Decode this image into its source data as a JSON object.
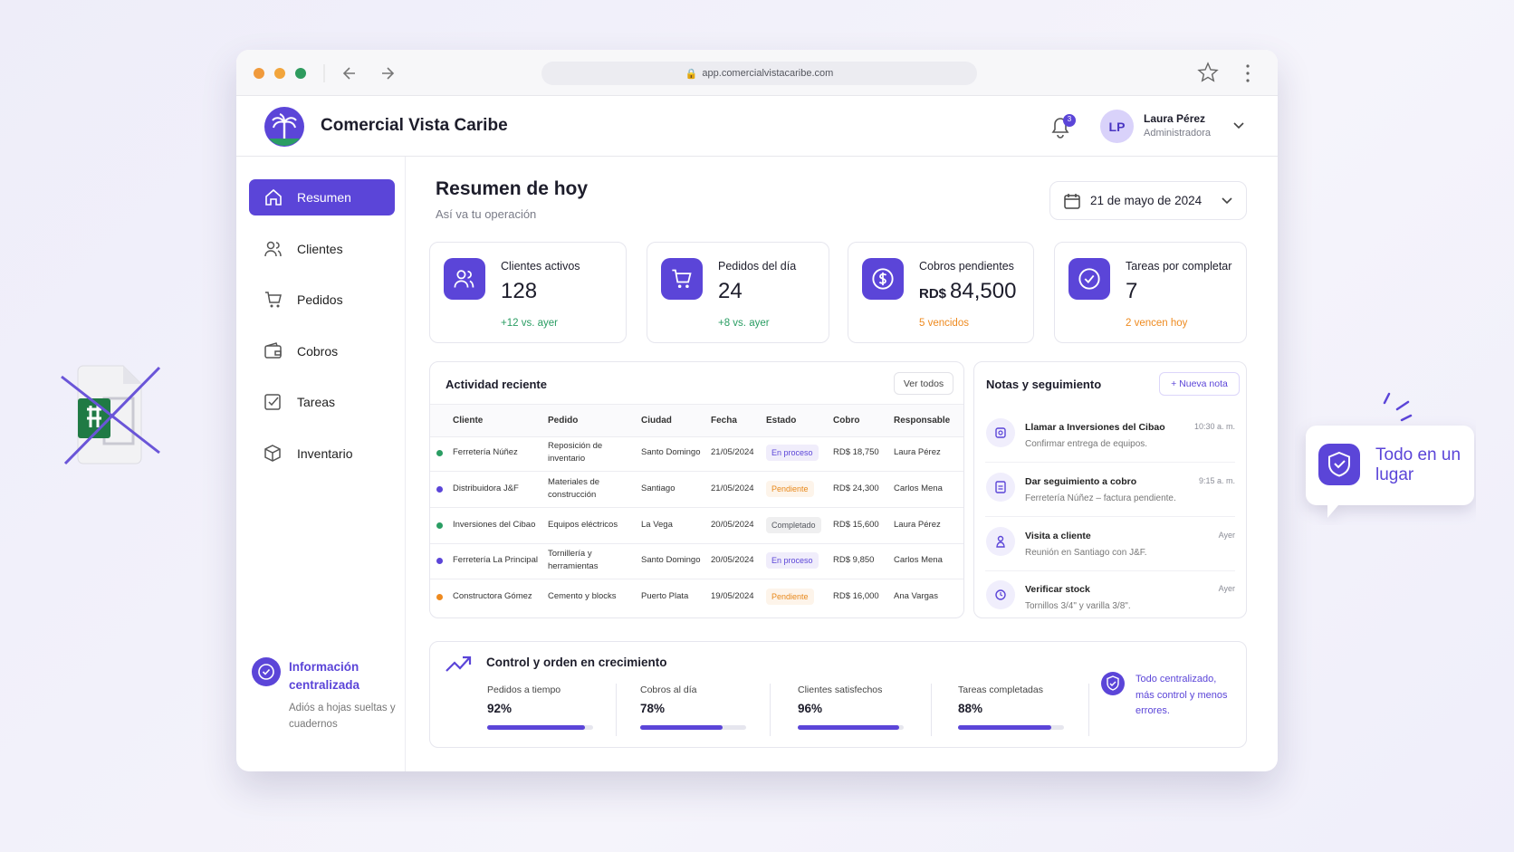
{
  "browser": {
    "url": "app.comercialvistacaribe.com"
  },
  "header": {
    "brand": "Comercial Vista Caribe",
    "notifications": "3",
    "user": {
      "initials": "LP",
      "name": "Laura Pérez",
      "role": "Administradora"
    }
  },
  "sidebar": {
    "nav": [
      "Resumen",
      "Clientes",
      "Pedidos",
      "Cobros",
      "Tareas",
      "Inventario"
    ],
    "info": {
      "title": "Información centralizada",
      "text": "Adiós a hojas sueltas y cuadernos"
    }
  },
  "main": {
    "title": "Resumen de hoy",
    "subtitle": "Así va tu operación",
    "date": "21 de mayo de 2024"
  },
  "stats": [
    {
      "label": "Clientes activos",
      "value": "128",
      "note": "+12 vs. ayer",
      "note_color": "#2a9d63"
    },
    {
      "label": "Pedidos del día",
      "value": "24",
      "note": "+8 vs. ayer",
      "note_color": "#2a9d63"
    },
    {
      "label": "Cobros pendientes",
      "currency": "RD$",
      "value": "84,500",
      "note": "5 vencidos",
      "note_color": "#ee8a1f"
    },
    {
      "label": "Tareas por completar",
      "value": "7",
      "note": "2 vencen hoy",
      "note_color": "#ee8a1f"
    }
  ],
  "activity": {
    "title": "Actividad reciente",
    "button": "Ver todos",
    "columns": [
      "Cliente",
      "Pedido",
      "Ciudad",
      "Fecha",
      "Estado",
      "Cobro",
      "Responsable"
    ],
    "rows": [
      {
        "dot": "#2a9d63",
        "badge": "#5b45d8",
        "cells": [
          "Ferretería Núñez",
          "Reposición de inventario",
          "Santo Domingo",
          "21/05/2024",
          "En proceso",
          "RD$ 18,750",
          "Laura Pérez"
        ]
      },
      {
        "dot": "#5b45d8",
        "badge": "#e8891c",
        "cells": [
          "Distribuidora J&F",
          "Materiales de construcción",
          "Santiago",
          "21/05/2024",
          "Pendiente",
          "RD$ 24,300",
          "Carlos Mena"
        ]
      },
      {
        "dot": "#2a9d63",
        "badge": "#55585f",
        "cells": [
          "Inversiones del Cibao",
          "Equipos eléctricos",
          "La Vega",
          "20/05/2024",
          "Completado",
          "RD$ 15,600",
          "Laura Pérez"
        ]
      },
      {
        "dot": "#5b45d8",
        "badge": "#5b45d8",
        "cells": [
          "Ferretería La Principal",
          "Tornillería y herramientas",
          "Santo Domingo",
          "20/05/2024",
          "En proceso",
          "RD$ 9,850",
          "Carlos Mena"
        ]
      },
      {
        "dot": "#ee8a1f",
        "badge": "#e8891c",
        "cells": [
          "Constructora Gómez",
          "Cemento y blocks",
          "Puerto Plata",
          "19/05/2024",
          "Pendiente",
          "RD$ 16,000",
          "Ana Vargas"
        ]
      }
    ]
  },
  "notes": {
    "title": "Notas y seguimiento",
    "button": "+ Nueva nota",
    "items": [
      {
        "title": "Llamar a Inversiones del Cibao",
        "time": "10:30 a. m.",
        "text": "Confirmar entrega de equipos."
      },
      {
        "title": "Dar seguimiento a cobro",
        "time": "9:15 a. m.",
        "text": "Ferretería Núñez – factura pendiente."
      },
      {
        "title": "Visita a cliente",
        "time": "Ayer",
        "text": "Reunión en Santiago con J&F."
      },
      {
        "title": "Verificar stock",
        "time": "Ayer",
        "text": "Tornillos 3/4\" y varilla 3/8\"."
      }
    ]
  },
  "growth": {
    "title": "Control y orden en crecimiento",
    "metrics": [
      {
        "label": "Pedidos a tiempo",
        "value": 92,
        "value_label": "92%"
      },
      {
        "label": "Cobros al día",
        "value": 78,
        "value_label": "78%"
      },
      {
        "label": "Clientes satisfechos",
        "value": 96,
        "value_label": "96%"
      },
      {
        "label": "Tareas completadas",
        "value": 88,
        "value_label": "88%"
      }
    ],
    "note": "Todo centralizado, más control y menos errores."
  },
  "callout": {
    "text": "Todo en un lugar"
  }
}
